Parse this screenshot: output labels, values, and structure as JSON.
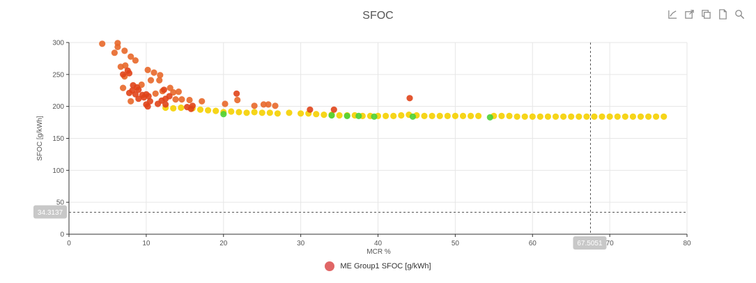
{
  "colors": {
    "series_red": "#e0441a",
    "series_orange": "#e8682a",
    "series_yellow": "#f5d000",
    "series_green": "#4cd137",
    "grid": "#e6e6e6",
    "axis": "#333333",
    "cursor_label_bg": "#c8c8c8",
    "legend_swatch": "#e06666"
  },
  "toolbar": {
    "icons": [
      "line-chart-icon",
      "open-external-icon",
      "copy-icon",
      "document-icon",
      "zoom-icon"
    ]
  },
  "chart_data": {
    "type": "scatter",
    "title": "SFOC",
    "xlabel": "MCR %",
    "ylabel": "SFOC [g/kWh]",
    "xlim": [
      0,
      80
    ],
    "ylim": [
      0,
      300
    ],
    "xticks": [
      "0",
      "10",
      "20",
      "30",
      "40",
      "50",
      "60",
      "70",
      "80"
    ],
    "yticks": [
      "0",
      "50",
      "100",
      "150",
      "200",
      "250",
      "300"
    ],
    "grid": true,
    "legend": {
      "placement": "bottom-center",
      "entries": [
        "ME Group1 SFOC [g/kWh]"
      ]
    },
    "cursor": {
      "x": 67.5051,
      "y": 34.3137,
      "x_label": "67.5051",
      "y_label": "34.3137"
    },
    "series": [
      {
        "name": "ME Group1 SFOC [g/kWh]",
        "points": [
          [
            4.3,
            298,
            "orange"
          ],
          [
            6.3,
            299,
            "orange"
          ],
          [
            6.3,
            293,
            "orange"
          ],
          [
            5.9,
            284,
            "orange"
          ],
          [
            7.2,
            287,
            "orange"
          ],
          [
            8.0,
            278,
            "orange"
          ],
          [
            8.6,
            272,
            "orange"
          ],
          [
            6.7,
            262,
            "orange"
          ],
          [
            7.3,
            264,
            "orange"
          ],
          [
            7.0,
            250,
            "red"
          ],
          [
            7.6,
            256,
            "red"
          ],
          [
            7.8,
            252,
            "red"
          ],
          [
            7.2,
            247,
            "orange"
          ],
          [
            10.2,
            257,
            "orange"
          ],
          [
            11.0,
            253,
            "orange"
          ],
          [
            11.8,
            249,
            "orange"
          ],
          [
            10.6,
            241,
            "orange"
          ],
          [
            11.7,
            241,
            "orange"
          ],
          [
            7.0,
            229,
            "orange"
          ],
          [
            8.3,
            233,
            "red"
          ],
          [
            8.8,
            230,
            "red"
          ],
          [
            9.0,
            226,
            "red"
          ],
          [
            8.2,
            225,
            "red"
          ],
          [
            7.8,
            221,
            "red"
          ],
          [
            9.4,
            234,
            "orange"
          ],
          [
            8.6,
            219,
            "red"
          ],
          [
            9.5,
            218,
            "red"
          ],
          [
            10.0,
            219,
            "red"
          ],
          [
            10.3,
            216,
            "red"
          ],
          [
            9.7,
            214,
            "red"
          ],
          [
            9.0,
            212,
            "red"
          ],
          [
            8.0,
            208,
            "orange"
          ],
          [
            10.5,
            208,
            "red"
          ],
          [
            10.0,
            203,
            "red"
          ],
          [
            10.2,
            200,
            "red"
          ],
          [
            11.2,
            220,
            "orange"
          ],
          [
            12.3,
            226,
            "red"
          ],
          [
            12.1,
            224,
            "orange"
          ],
          [
            13.1,
            229,
            "orange"
          ],
          [
            13.5,
            222,
            "orange"
          ],
          [
            14.2,
            223,
            "orange"
          ],
          [
            13.0,
            216,
            "red"
          ],
          [
            12.5,
            212,
            "red"
          ],
          [
            12.0,
            209,
            "red"
          ],
          [
            11.5,
            204,
            "red"
          ],
          [
            12.5,
            203,
            "red"
          ],
          [
            13.8,
            211,
            "orange"
          ],
          [
            14.6,
            211,
            "orange"
          ],
          [
            15.6,
            210,
            "orange"
          ],
          [
            16.0,
            201,
            "red"
          ],
          [
            15.3,
            199,
            "red"
          ],
          [
            15.8,
            196,
            "red"
          ],
          [
            17.2,
            208,
            "orange"
          ],
          [
            20.2,
            204,
            "orange"
          ],
          [
            21.7,
            220,
            "red"
          ],
          [
            21.8,
            210,
            "orange"
          ],
          [
            24.0,
            201,
            "orange"
          ],
          [
            25.2,
            203,
            "orange"
          ],
          [
            25.8,
            203,
            "orange"
          ],
          [
            26.7,
            201,
            "orange"
          ],
          [
            31.2,
            195,
            "red"
          ],
          [
            34.3,
            195,
            "red"
          ],
          [
            44.1,
            213,
            "red"
          ],
          [
            12.5,
            198,
            "yellow"
          ],
          [
            13.5,
            197,
            "yellow"
          ],
          [
            14.5,
            198,
            "yellow"
          ],
          [
            16.0,
            197,
            "yellow"
          ],
          [
            17.0,
            195,
            "yellow"
          ],
          [
            18.0,
            194,
            "yellow"
          ],
          [
            19.0,
            193,
            "yellow"
          ],
          [
            20.0,
            191,
            "yellow"
          ],
          [
            21.0,
            192,
            "yellow"
          ],
          [
            22.0,
            191,
            "yellow"
          ],
          [
            23.0,
            190,
            "yellow"
          ],
          [
            24.0,
            191,
            "yellow"
          ],
          [
            25.0,
            190,
            "yellow"
          ],
          [
            26.0,
            190,
            "yellow"
          ],
          [
            27.0,
            189,
            "yellow"
          ],
          [
            28.5,
            190,
            "yellow"
          ],
          [
            30.0,
            189,
            "yellow"
          ],
          [
            31.0,
            189,
            "yellow"
          ],
          [
            32.0,
            188,
            "yellow"
          ],
          [
            33.0,
            187,
            "yellow"
          ],
          [
            34.0,
            187,
            "yellow"
          ],
          [
            35.0,
            186,
            "yellow"
          ],
          [
            36.0,
            186,
            "yellow"
          ],
          [
            37.0,
            186,
            "yellow"
          ],
          [
            38.0,
            185,
            "yellow"
          ],
          [
            39.0,
            185,
            "yellow"
          ],
          [
            40.0,
            185,
            "yellow"
          ],
          [
            41.0,
            185,
            "yellow"
          ],
          [
            42.0,
            185,
            "yellow"
          ],
          [
            43.0,
            186,
            "yellow"
          ],
          [
            44.0,
            187,
            "yellow"
          ],
          [
            45.0,
            186,
            "yellow"
          ],
          [
            46.0,
            185,
            "yellow"
          ],
          [
            47.0,
            185,
            "yellow"
          ],
          [
            48.0,
            185,
            "yellow"
          ],
          [
            49.0,
            185,
            "yellow"
          ],
          [
            50.0,
            185,
            "yellow"
          ],
          [
            51.0,
            185,
            "yellow"
          ],
          [
            52.0,
            185,
            "yellow"
          ],
          [
            53.0,
            185,
            "yellow"
          ],
          [
            55.0,
            185,
            "yellow"
          ],
          [
            56.0,
            185,
            "yellow"
          ],
          [
            57.0,
            185,
            "yellow"
          ],
          [
            58.0,
            184,
            "yellow"
          ],
          [
            59.0,
            184,
            "yellow"
          ],
          [
            60.0,
            184,
            "yellow"
          ],
          [
            61.0,
            184,
            "yellow"
          ],
          [
            62.0,
            184,
            "yellow"
          ],
          [
            63.0,
            184,
            "yellow"
          ],
          [
            64.0,
            184,
            "yellow"
          ],
          [
            65.0,
            184,
            "yellow"
          ],
          [
            66.0,
            184,
            "yellow"
          ],
          [
            67.0,
            184,
            "yellow"
          ],
          [
            68.0,
            184,
            "yellow"
          ],
          [
            69.0,
            184,
            "yellow"
          ],
          [
            70.0,
            184,
            "yellow"
          ],
          [
            71.0,
            184,
            "yellow"
          ],
          [
            72.0,
            184,
            "yellow"
          ],
          [
            73.0,
            184,
            "yellow"
          ],
          [
            74.0,
            184,
            "yellow"
          ],
          [
            75.0,
            184,
            "yellow"
          ],
          [
            76.0,
            184,
            "yellow"
          ],
          [
            77.0,
            184,
            "yellow"
          ],
          [
            20.0,
            188,
            "green"
          ],
          [
            34.0,
            186,
            "green"
          ],
          [
            36.0,
            185,
            "green"
          ],
          [
            37.5,
            185,
            "green"
          ],
          [
            39.5,
            184,
            "green"
          ],
          [
            44.5,
            184,
            "green"
          ],
          [
            54.5,
            183,
            "green"
          ]
        ]
      }
    ]
  }
}
